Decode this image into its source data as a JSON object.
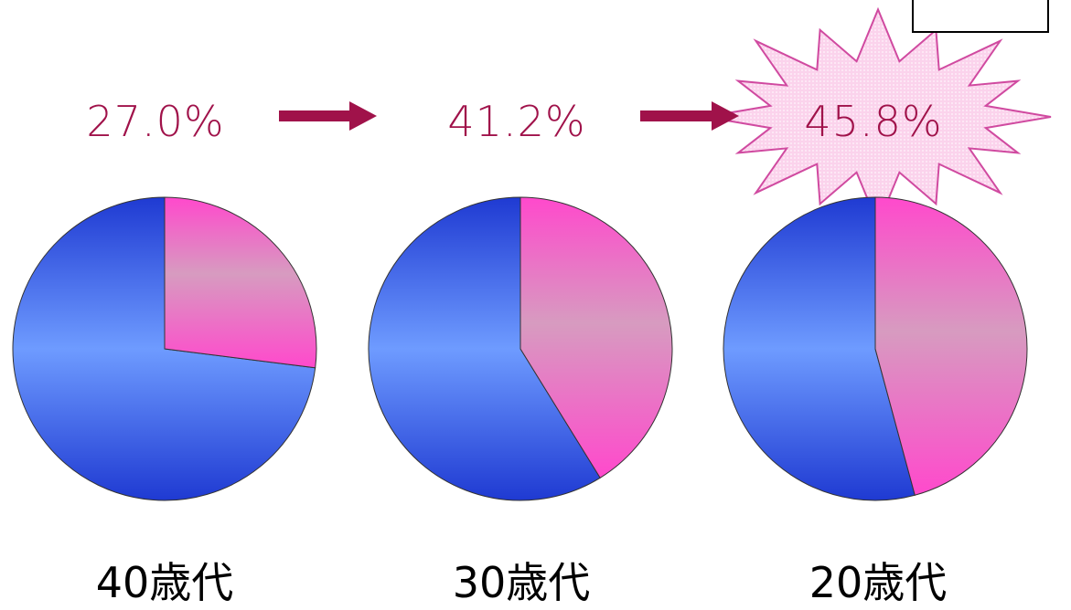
{
  "colors": {
    "label": "#a0124a",
    "arrow": "#a0124a",
    "female_slice": "#ee5ad0",
    "male_slice": "#3a5fe0",
    "burst_fill": "#fbd7ee",
    "burst_stroke": "#d04aa0"
  },
  "chart_data": {
    "type": "pie",
    "charts": [
      {
        "category": "40歳代",
        "percentage_label": "27.0%",
        "highlight_value": 27.0,
        "rest_value": 73.0
      },
      {
        "category": "30歳代",
        "percentage_label": "41.2%",
        "highlight_value": 41.2,
        "rest_value": 58.8
      },
      {
        "category": "20歳代",
        "percentage_label": "45.8%",
        "highlight_value": 45.8,
        "rest_value": 54.2,
        "emphasized": true
      }
    ],
    "annotations": [
      "arrow from 27.0% to 41.2%",
      "arrow from 41.2% to 45.8%"
    ]
  }
}
